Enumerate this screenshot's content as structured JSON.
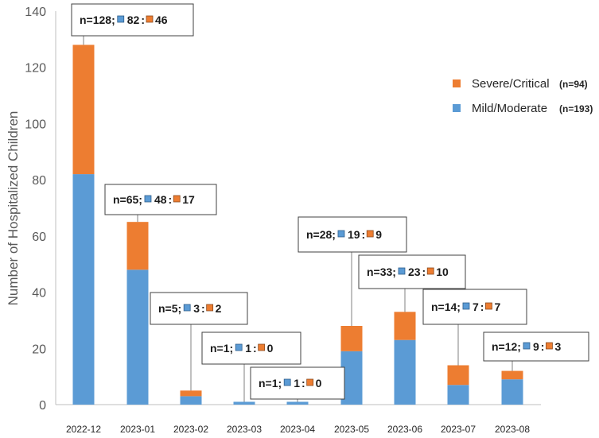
{
  "chart_data": {
    "type": "bar",
    "stacked": true,
    "title": "",
    "xlabel": "",
    "ylabel": "Number of Hospitalized Children",
    "ylim": [
      0,
      140
    ],
    "yticks": [
      0,
      20,
      40,
      60,
      80,
      100,
      120,
      140
    ],
    "grid": false,
    "legend_position": "right",
    "categories": [
      "2022-12",
      "2023-01",
      "2023-02",
      "2023-03",
      "2023-04",
      "2023-05",
      "2023-06",
      "2023-07",
      "2023-08"
    ],
    "series": [
      {
        "name": "Mild/Moderate",
        "total_label": "(n=193)",
        "color": "#5B9BD5",
        "values": [
          82,
          48,
          3,
          1,
          1,
          19,
          23,
          7,
          9
        ]
      },
      {
        "name": "Severe/Critical",
        "total_label": "(n=94)",
        "color": "#ED7D31",
        "values": [
          46,
          17,
          2,
          0,
          0,
          9,
          10,
          7,
          3
        ]
      }
    ],
    "callouts": [
      {
        "total": "n=128;",
        "mild": "82",
        "severe": "46"
      },
      {
        "total": "n=65;",
        "mild": "48",
        "severe": "17"
      },
      {
        "total": "n=5;",
        "mild": "3",
        "severe": "2"
      },
      {
        "total": "n=1;",
        "mild": "1",
        "severe": "0"
      },
      {
        "total": "n=1;",
        "mild": "1",
        "severe": "0"
      },
      {
        "total": "n=28;",
        "mild": "19",
        "severe": "9"
      },
      {
        "total": "n=33;",
        "mild": "23",
        "severe": "10"
      },
      {
        "total": "n=14;",
        "mild": "7",
        "severe": "7"
      },
      {
        "total": "n=12;",
        "mild": "9",
        "severe": "3"
      }
    ],
    "callout_separator": ":"
  }
}
